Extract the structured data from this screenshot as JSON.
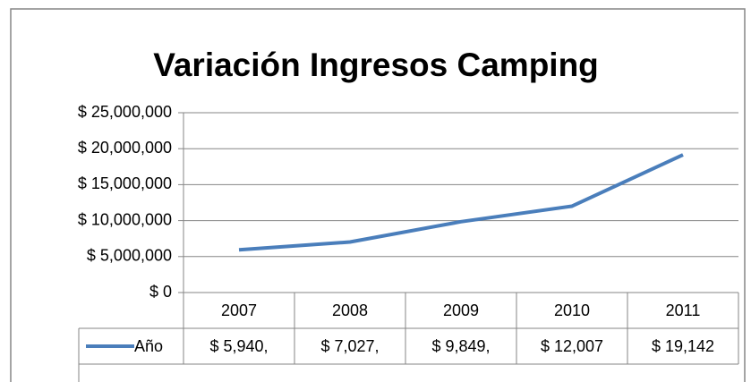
{
  "chart_data": {
    "type": "line",
    "title": "Variación Ingresos Camping",
    "categories": [
      "2007",
      "2008",
      "2009",
      "2010",
      "2011"
    ],
    "series": [
      {
        "name": "Año",
        "color": "#4a7ebb",
        "values": [
          5940000,
          7027000,
          9849000,
          12007000,
          19142000
        ],
        "value_labels": [
          "$ 5,940,",
          "$ 7,027,",
          "$ 9,849,",
          "$ 12,007",
          "$ 19,142"
        ]
      }
    ],
    "ylim": [
      0,
      25000000
    ],
    "yticks": [
      {
        "value": 0,
        "label": "$ 0"
      },
      {
        "value": 5000000,
        "label": "$ 5,000,000"
      },
      {
        "value": 10000000,
        "label": "$ 10,000,000"
      },
      {
        "value": 15000000,
        "label": "$ 15,000,000"
      },
      {
        "value": 20000000,
        "label": "$ 20,000,000"
      },
      {
        "value": 25000000,
        "label": "$ 25,000,000"
      }
    ],
    "grid": true
  }
}
